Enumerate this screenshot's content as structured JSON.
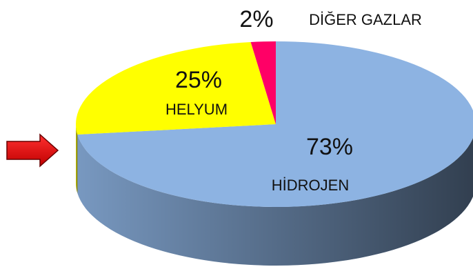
{
  "chart_data": {
    "type": "pie",
    "categories": [
      "HİDROJEN",
      "HELYUM",
      "DİĞER GAZLAR"
    ],
    "values": [
      73,
      25,
      2
    ],
    "value_labels": [
      "73%",
      "25%",
      "2%"
    ],
    "colors": [
      "#8db3e2",
      "#ffff00",
      "#ff0066"
    ]
  }
}
